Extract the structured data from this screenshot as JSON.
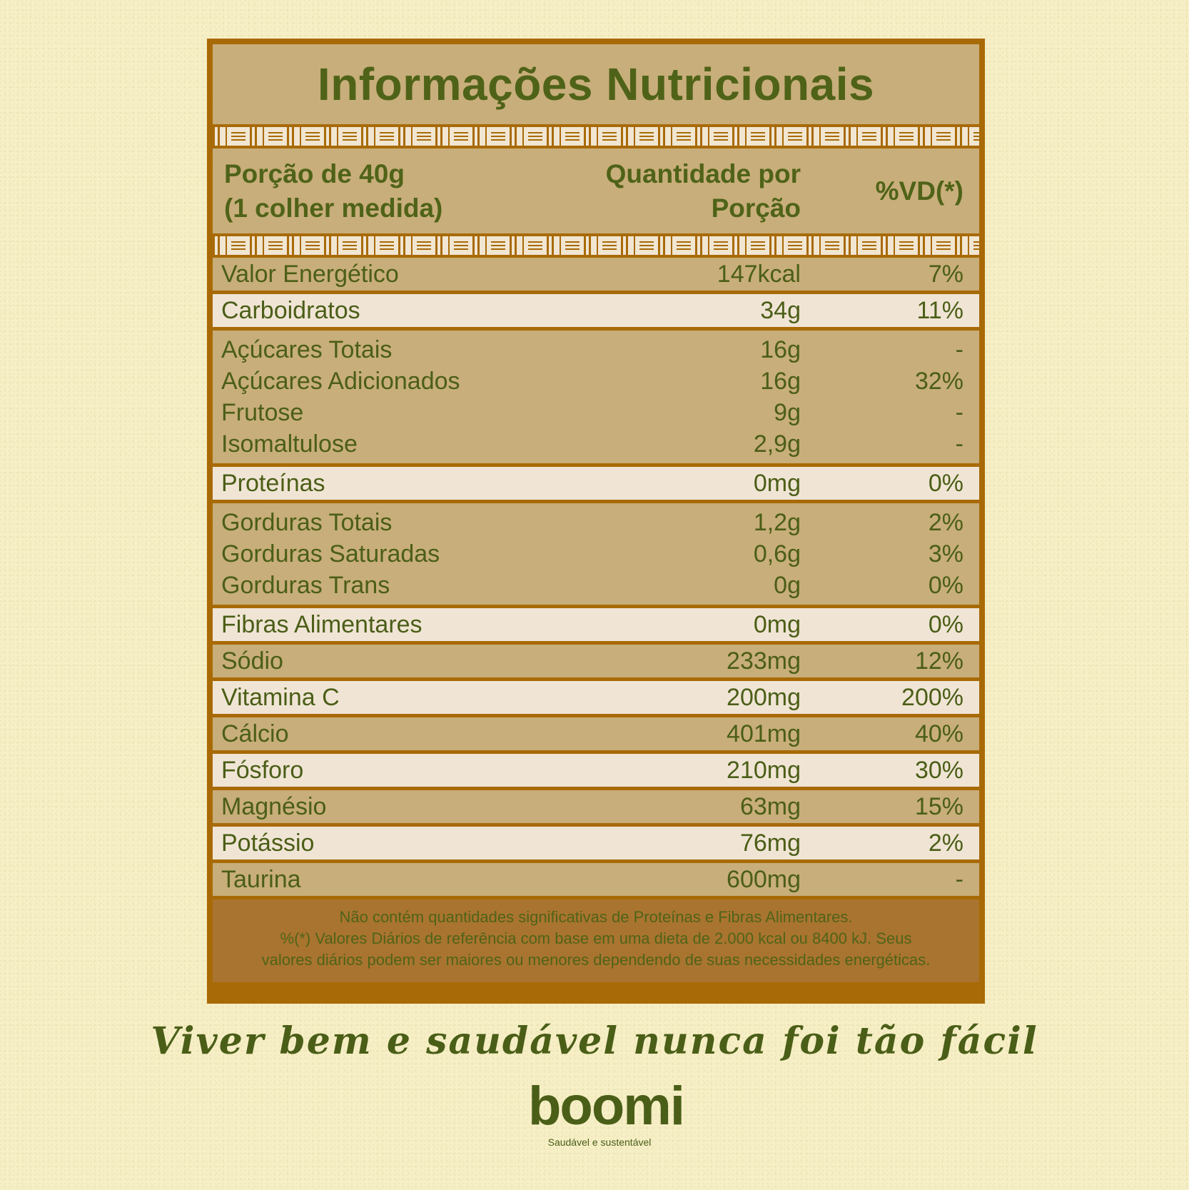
{
  "title": "Informações Nutricionais",
  "header": {
    "portion_line1": "Porção de 40g",
    "portion_line2": "(1 colher medida)",
    "quantity_line1": "Quantidade por",
    "quantity_line2": "Porção",
    "dv": "%VD(*)"
  },
  "rows": [
    {
      "name": "Valor Energético",
      "qty": "147kcal",
      "dv": "7%"
    },
    {
      "name": "Carboidratos",
      "qty": "34g",
      "dv": "11%"
    },
    {
      "name": "Açúcares Totais",
      "qty": "16g",
      "dv": "-"
    },
    {
      "name": "Açúcares Adicionados",
      "qty": "16g",
      "dv": "32%"
    },
    {
      "name": "Frutose",
      "qty": "9g",
      "dv": "-"
    },
    {
      "name": "Isomaltulose",
      "qty": "2,9g",
      "dv": "-"
    },
    {
      "name": "Proteínas",
      "qty": "0mg",
      "dv": "0%"
    },
    {
      "name": "Gorduras Totais",
      "qty": "1,2g",
      "dv": "2%"
    },
    {
      "name": "Gorduras Saturadas",
      "qty": "0,6g",
      "dv": "3%"
    },
    {
      "name": "Gorduras Trans",
      "qty": "0g",
      "dv": "0%"
    },
    {
      "name": "Fibras Alimentares",
      "qty": "0mg",
      "dv": "0%"
    },
    {
      "name": "Sódio",
      "qty": "233mg",
      "dv": "12%"
    },
    {
      "name": "Vitamina C",
      "qty": "200mg",
      "dv": "200%"
    },
    {
      "name": "Cálcio",
      "qty": "401mg",
      "dv": "40%"
    },
    {
      "name": "Fósforo",
      "qty": "210mg",
      "dv": "30%"
    },
    {
      "name": "Magnésio",
      "qty": "63mg",
      "dv": "15%"
    },
    {
      "name": "Potássio",
      "qty": "76mg",
      "dv": "2%"
    },
    {
      "name": "Taurina",
      "qty": "600mg",
      "dv": "-"
    }
  ],
  "footnote": {
    "line1": "Não contém quantidades significativas de Proteínas e Fibras Alimentares.",
    "line2": "%(*) Valores Diários de referência com base em uma dieta de 2.000 kcal ou 8400 kJ. Seus",
    "line3": "valores diários podem ser maiores ou menores dependendo de suas necessidades energéticas."
  },
  "slogan": "Viver bem e saudável nunca foi tão fácil",
  "brand": {
    "name": "boomi",
    "tagline": "Saudável e sustentável"
  },
  "colors": {
    "background": "#f6efc6",
    "frame": "#a86a06",
    "panel_dark": "#c8ae7a",
    "panel_light": "#f0e5d5",
    "text_green": "#4b5e17"
  }
}
